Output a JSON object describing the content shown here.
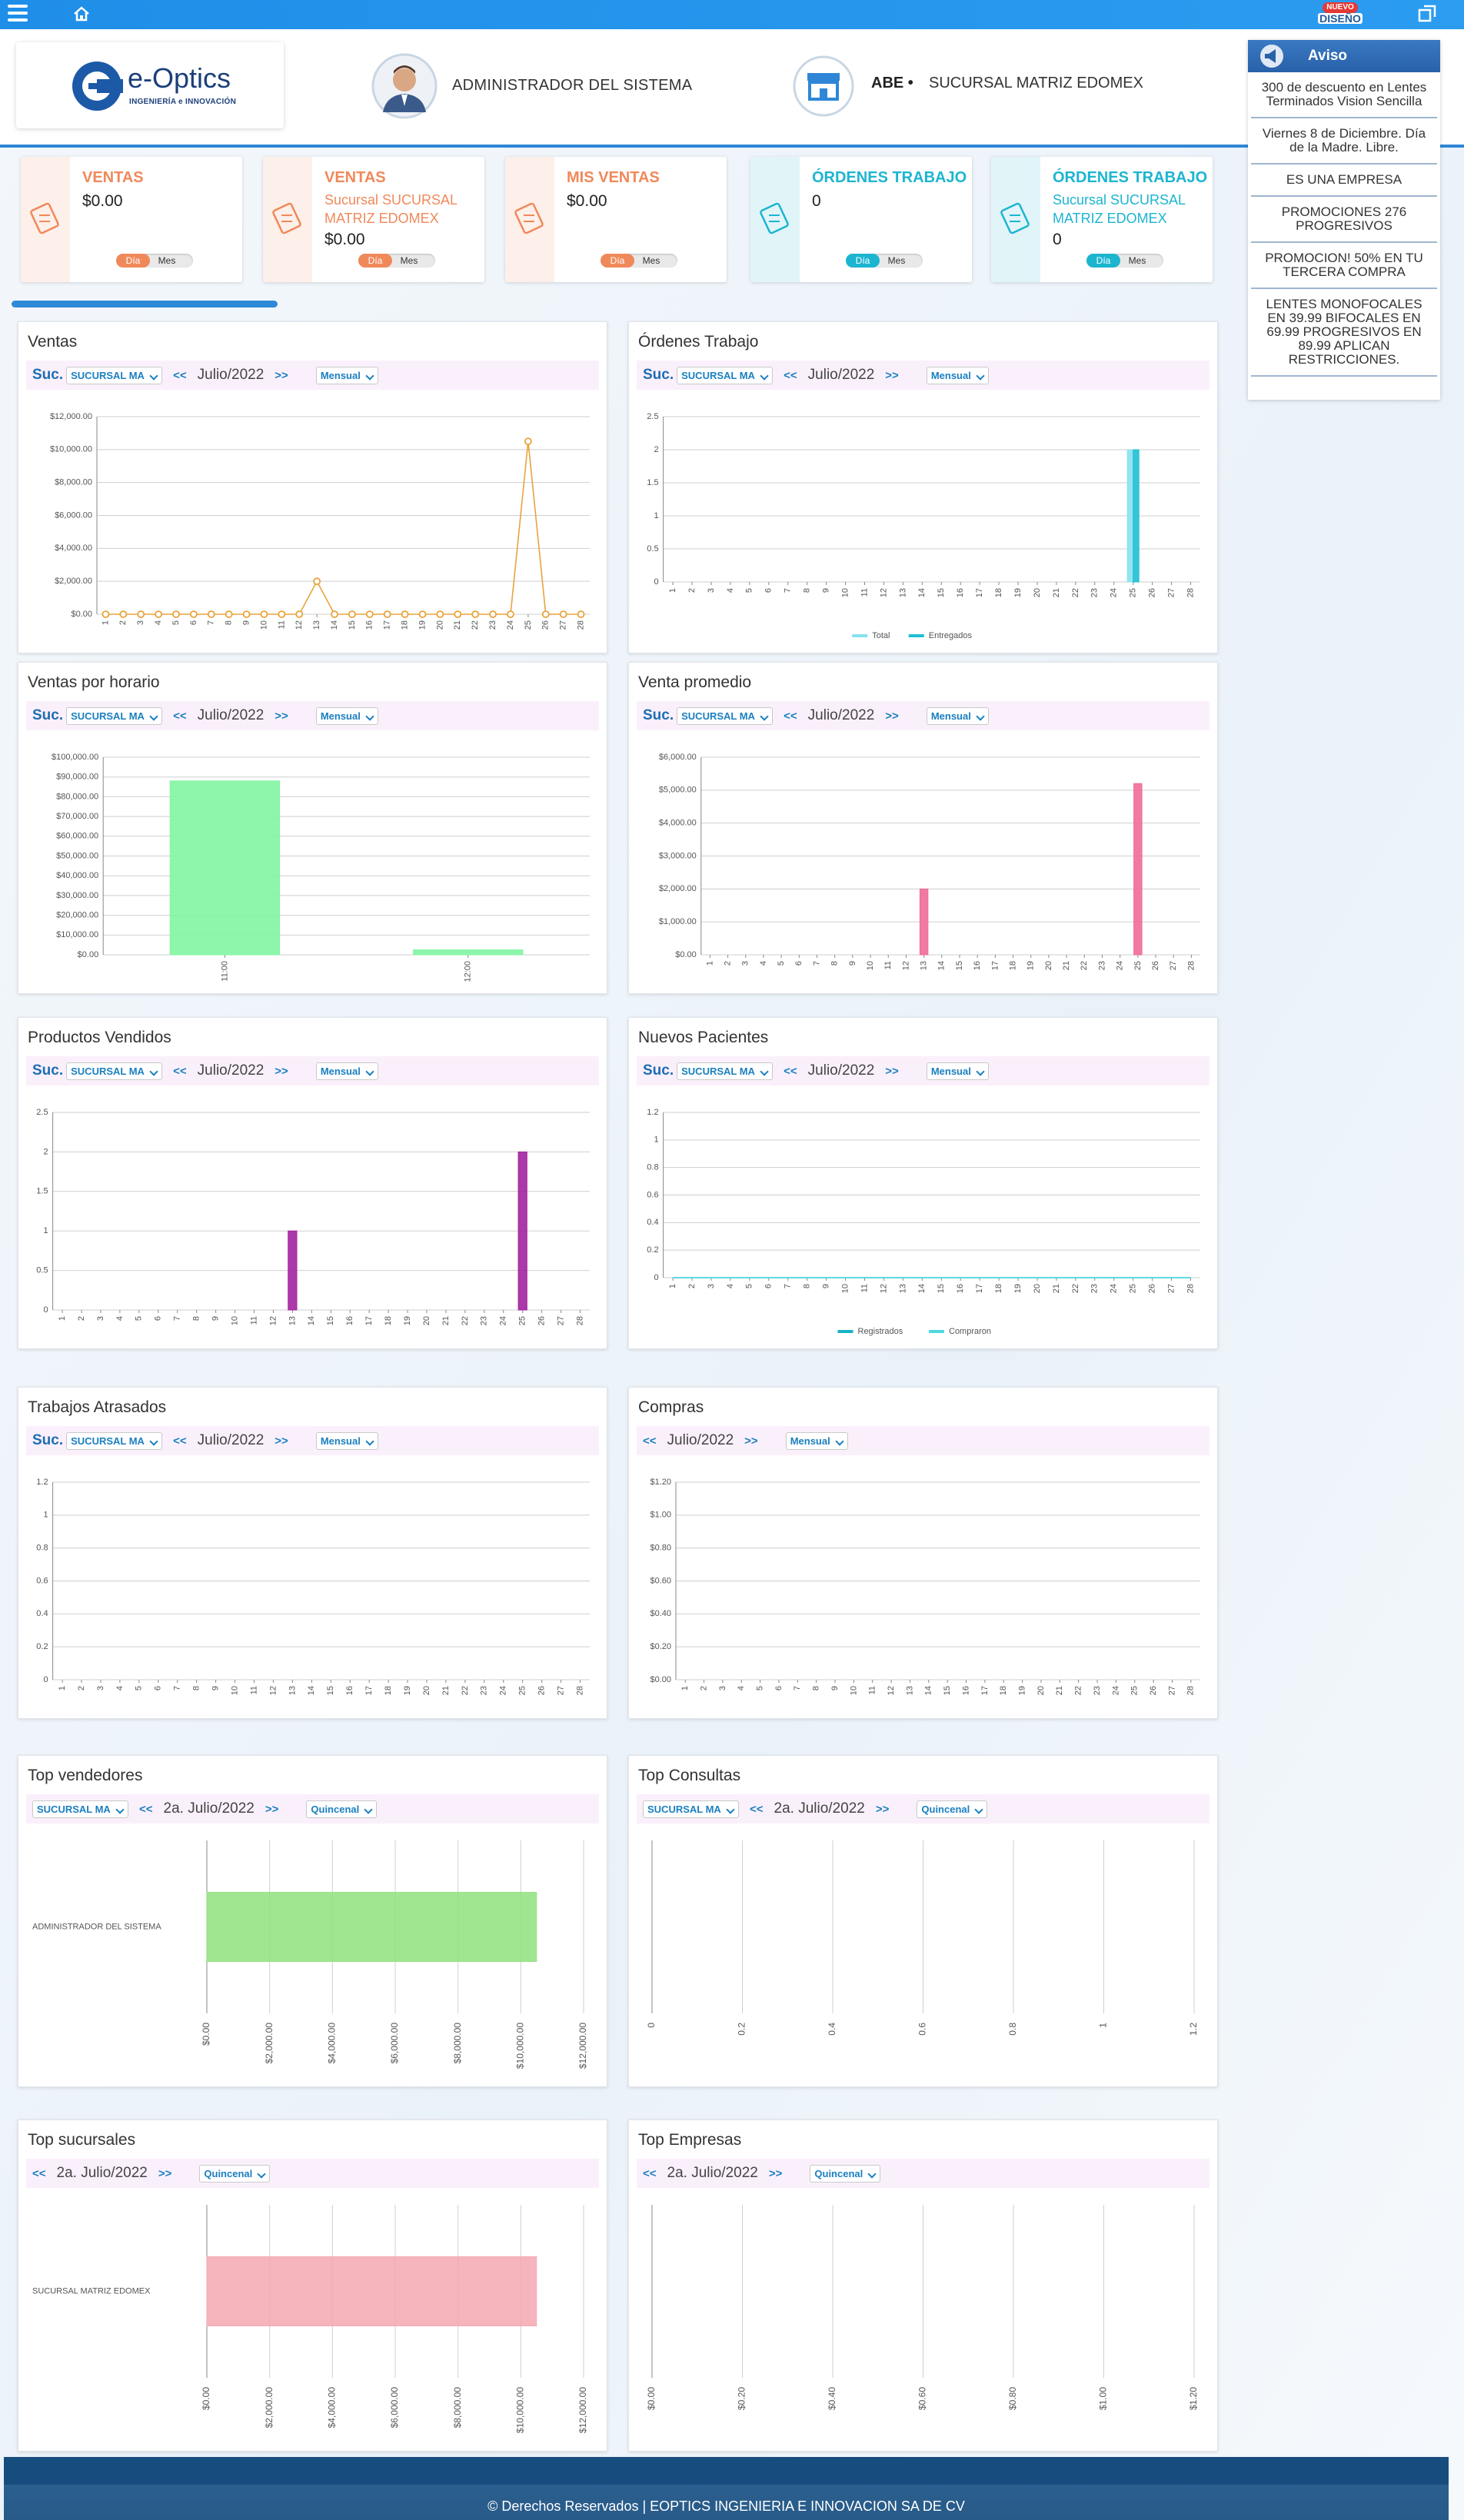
{
  "header": {
    "badge": [
      "NUEVO",
      "DISEÑO"
    ],
    "logo": {
      "name": "e-Optics",
      "tagline": "INGENIERÍA e INNOVACIÓN"
    },
    "user": "ADMINISTRADOR DEL SISTEMA",
    "company": "ABE •",
    "branch": "SUCURSAL MATRIZ EDOMEX"
  },
  "cards": [
    {
      "title": "VENTAS",
      "value": "$0.00",
      "toggle": [
        "Día",
        "Mes"
      ],
      "color": "#f0895a"
    },
    {
      "title": "VENTAS",
      "subtitle": "Sucursal SUCURSAL MATRIZ EDOMEX",
      "value": "$0.00",
      "toggle": [
        "Día",
        "Mes"
      ],
      "color": "#f0895a"
    },
    {
      "title": "MIS VENTAS",
      "value": "$0.00",
      "toggle": [
        "Día",
        "Mes"
      ],
      "color": "#f0895a"
    },
    {
      "title": "ÓRDENES TRABAJO",
      "value": "0",
      "toggle": [
        "Día",
        "Mes"
      ],
      "color": "#1cb5d0"
    },
    {
      "title": "ÓRDENES TRABAJO",
      "subtitle": "Sucursal SUCURSAL MATRIZ EDOMEX",
      "value": "0",
      "toggle": [
        "Día",
        "Mes"
      ],
      "color": "#1cb5d0"
    }
  ],
  "aviso": {
    "title": "Aviso",
    "items": [
      "300 de descuento en Lentes Terminados Vision Sencilla",
      "Viernes 8 de Diciembre. Día de la Madre. Libre.",
      "ES UNA EMPRESA",
      "PROMOCIONES 276 PROGRESIVOS",
      "PROMOCION! 50% EN TU TERCERA COMPRA",
      "LENTES MONOFOCALES EN 39.99 BIFOCALES EN 69.99 PROGRESIVOS EN 89.99 APLICAN RESTRICCIONES."
    ]
  },
  "chart_data": [
    {
      "type": "line",
      "title": "Ventas",
      "markers": true,
      "controls": {
        "suc": "Suc.",
        "branch": "SUCURSAL MA",
        "prev": "<<",
        "period": "Julio/2022",
        "next": ">>",
        "mode": "Mensual"
      },
      "categories": [
        "1",
        "2",
        "3",
        "4",
        "5",
        "6",
        "7",
        "8",
        "9",
        "10",
        "11",
        "12",
        "13",
        "14",
        "15",
        "16",
        "17",
        "18",
        "19",
        "20",
        "21",
        "22",
        "23",
        "24",
        "25",
        "26",
        "27",
        "28"
      ],
      "values": [
        0,
        0,
        0,
        0,
        0,
        0,
        0,
        0,
        0,
        0,
        0,
        0,
        2000,
        0,
        0,
        0,
        0,
        0,
        0,
        0,
        0,
        0,
        0,
        0,
        10500,
        0,
        0,
        0
      ],
      "color": "#e8a33d",
      "ylim": [
        0,
        12000
      ],
      "yticks": [
        {
          "value": 0,
          "label": "$0.00"
        },
        {
          "value": 2000,
          "label": "$2,000.00"
        },
        {
          "value": 4000,
          "label": "$4,000.00"
        },
        {
          "value": 6000,
          "label": "$6,000.00"
        },
        {
          "value": 8000,
          "label": "$8,000.00"
        },
        {
          "value": 10000,
          "label": "$10,000.00"
        },
        {
          "value": 12000,
          "label": "$12,000.00"
        }
      ]
    },
    {
      "type": "bar",
      "title": "Órdenes Trabajo",
      "legend": "bottom",
      "controls": {
        "suc": "Suc.",
        "branch": "SUCURSAL MA",
        "prev": "<<",
        "period": "Julio/2022",
        "next": ">>",
        "mode": "Mensual"
      },
      "categories": [
        "1",
        "2",
        "3",
        "4",
        "5",
        "6",
        "7",
        "8",
        "9",
        "10",
        "11",
        "12",
        "13",
        "14",
        "15",
        "16",
        "17",
        "18",
        "19",
        "20",
        "21",
        "22",
        "23",
        "24",
        "25",
        "26",
        "27",
        "28"
      ],
      "series": [
        {
          "name": "Total",
          "color": "#86e2ee",
          "values": [
            0,
            0,
            0,
            0,
            0,
            0,
            0,
            0,
            0,
            0,
            0,
            0,
            0,
            0,
            0,
            0,
            0,
            0,
            0,
            0,
            0,
            0,
            0,
            0,
            2,
            0,
            0,
            0
          ]
        },
        {
          "name": "Entregados",
          "color": "#1fbfd4",
          "values": [
            0,
            0,
            0,
            0,
            0,
            0,
            0,
            0,
            0,
            0,
            0,
            0,
            0,
            0,
            0,
            0,
            0,
            0,
            0,
            0,
            0,
            0,
            0,
            0,
            2,
            0,
            0,
            0
          ]
        }
      ],
      "ylim": [
        0,
        2.5
      ],
      "yticks": [
        0,
        0.5,
        1,
        1.5,
        2,
        2.5
      ]
    },
    {
      "type": "bar",
      "title": "Ventas por horario",
      "controls": {
        "suc": "Suc.",
        "branch": "SUCURSAL MA",
        "prev": "<<",
        "period": "Julio/2022",
        "next": ">>",
        "mode": "Mensual"
      },
      "categories": [
        "11:00",
        "12:00"
      ],
      "values": [
        88000,
        2500
      ],
      "color": "#82f5a2",
      "ylim": [
        0,
        100000
      ],
      "yticks": [
        {
          "value": 0,
          "label": "$0.00"
        },
        {
          "value": 10000,
          "label": "$10,000.00"
        },
        {
          "value": 20000,
          "label": "$20,000.00"
        },
        {
          "value": 30000,
          "label": "$30,000.00"
        },
        {
          "value": 40000,
          "label": "$40,000.00"
        },
        {
          "value": 50000,
          "label": "$50,000.00"
        },
        {
          "value": 60000,
          "label": "$60,000.00"
        },
        {
          "value": 70000,
          "label": "$70,000.00"
        },
        {
          "value": 80000,
          "label": "$80,000.00"
        },
        {
          "value": 90000,
          "label": "$90,000.00"
        },
        {
          "value": 100000,
          "label": "$100,000.00"
        }
      ]
    },
    {
      "type": "bar",
      "title": "Venta promedio",
      "controls": {
        "suc": "Suc.",
        "branch": "SUCURSAL MA",
        "prev": "<<",
        "period": "Julio/2022",
        "next": ">>",
        "mode": "Mensual"
      },
      "categories": [
        "1",
        "2",
        "3",
        "4",
        "5",
        "6",
        "7",
        "8",
        "9",
        "10",
        "11",
        "12",
        "13",
        "14",
        "15",
        "16",
        "17",
        "18",
        "19",
        "20",
        "21",
        "22",
        "23",
        "24",
        "25",
        "26",
        "27",
        "28"
      ],
      "values": [
        0,
        0,
        0,
        0,
        0,
        0,
        0,
        0,
        0,
        0,
        0,
        0,
        2000,
        0,
        0,
        0,
        0,
        0,
        0,
        0,
        0,
        0,
        0,
        0,
        5200,
        0,
        0,
        0
      ],
      "color": "#f06b99",
      "ylim": [
        0,
        6000
      ],
      "yticks": [
        {
          "value": 0,
          "label": "$0.00"
        },
        {
          "value": 1000,
          "label": "$1,000.00"
        },
        {
          "value": 2000,
          "label": "$2,000.00"
        },
        {
          "value": 3000,
          "label": "$3,000.00"
        },
        {
          "value": 4000,
          "label": "$4,000.00"
        },
        {
          "value": 5000,
          "label": "$5,000.00"
        },
        {
          "value": 6000,
          "label": "$6,000.00"
        }
      ]
    },
    {
      "type": "bar",
      "title": "Productos Vendidos",
      "controls": {
        "suc": "Suc.",
        "branch": "SUCURSAL MA",
        "prev": "<<",
        "period": "Julio/2022",
        "next": ">>",
        "mode": "Mensual"
      },
      "categories": [
        "1",
        "2",
        "3",
        "4",
        "5",
        "6",
        "7",
        "8",
        "9",
        "10",
        "11",
        "12",
        "13",
        "14",
        "15",
        "16",
        "17",
        "18",
        "19",
        "20",
        "21",
        "22",
        "23",
        "24",
        "25",
        "26",
        "27",
        "28"
      ],
      "values": [
        0,
        0,
        0,
        0,
        0,
        0,
        0,
        0,
        0,
        0,
        0,
        0,
        1,
        0,
        0,
        0,
        0,
        0,
        0,
        0,
        0,
        0,
        0,
        0,
        2,
        0,
        0,
        0
      ],
      "color": "#a3239f",
      "ylim": [
        0,
        2.5
      ],
      "yticks": [
        0,
        0.5,
        1,
        1.5,
        2,
        2.5
      ]
    },
    {
      "type": "line",
      "title": "Nuevos Pacientes",
      "legend": "bottom",
      "controls": {
        "suc": "Suc.",
        "branch": "SUCURSAL MA",
        "prev": "<<",
        "period": "Julio/2022",
        "next": ">>",
        "mode": "Mensual"
      },
      "categories": [
        "1",
        "2",
        "3",
        "4",
        "5",
        "6",
        "7",
        "8",
        "9",
        "10",
        "11",
        "12",
        "13",
        "14",
        "15",
        "16",
        "17",
        "18",
        "19",
        "20",
        "21",
        "22",
        "23",
        "24",
        "25",
        "26",
        "27",
        "28"
      ],
      "series": [
        {
          "name": "Registrados",
          "color": "#17b3c6",
          "values": [
            0,
            0,
            0,
            0,
            0,
            0,
            0,
            0,
            0,
            0,
            0,
            0,
            0,
            0,
            0,
            0,
            0,
            0,
            0,
            0,
            0,
            0,
            0,
            0,
            0,
            0,
            0,
            0
          ]
        },
        {
          "name": "Compraron",
          "color": "#4fd8e2",
          "values": [
            0,
            0,
            0,
            0,
            0,
            0,
            0,
            0,
            0,
            0,
            0,
            0,
            0,
            0,
            0,
            0,
            0,
            0,
            0,
            0,
            0,
            0,
            0,
            0,
            0,
            0,
            0,
            0
          ]
        }
      ],
      "ylim": [
        0,
        1.2
      ],
      "yticks": [
        0,
        0.2,
        0.4,
        0.6,
        0.8,
        1,
        1.2
      ]
    },
    {
      "type": "bar",
      "title": "Trabajos Atrasados",
      "controls": {
        "suc": "Suc.",
        "branch": "SUCURSAL MA",
        "prev": "<<",
        "period": "Julio/2022",
        "next": ">>",
        "mode": "Mensual"
      },
      "categories": [
        "1",
        "2",
        "3",
        "4",
        "5",
        "6",
        "7",
        "8",
        "9",
        "10",
        "11",
        "12",
        "13",
        "14",
        "15",
        "16",
        "17",
        "18",
        "19",
        "20",
        "21",
        "22",
        "23",
        "24",
        "25",
        "26",
        "27",
        "28"
      ],
      "values": [
        0,
        0,
        0,
        0,
        0,
        0,
        0,
        0,
        0,
        0,
        0,
        0,
        0,
        0,
        0,
        0,
        0,
        0,
        0,
        0,
        0,
        0,
        0,
        0,
        0,
        0,
        0,
        0
      ],
      "ylim": [
        0,
        1.2
      ],
      "yticks": [
        0,
        0.2,
        0.4,
        0.6,
        0.8,
        1,
        1.2
      ]
    },
    {
      "type": "bar",
      "title": "Compras",
      "controls": {
        "prev": "<<",
        "period": "Julio/2022",
        "next": ">>",
        "mode": "Mensual"
      },
      "categories": [
        "1",
        "2",
        "3",
        "4",
        "5",
        "6",
        "7",
        "8",
        "9",
        "10",
        "11",
        "12",
        "13",
        "14",
        "15",
        "16",
        "17",
        "18",
        "19",
        "20",
        "21",
        "22",
        "23",
        "24",
        "25",
        "26",
        "27",
        "28"
      ],
      "values": [
        0,
        0,
        0,
        0,
        0,
        0,
        0,
        0,
        0,
        0,
        0,
        0,
        0,
        0,
        0,
        0,
        0,
        0,
        0,
        0,
        0,
        0,
        0,
        0,
        0,
        0,
        0,
        0
      ],
      "ylim": [
        0,
        1.2
      ],
      "yticks": [
        {
          "value": 0,
          "label": "$0.00"
        },
        {
          "value": 0.2,
          "label": "$0.20"
        },
        {
          "value": 0.4,
          "label": "$0.40"
        },
        {
          "value": 0.6,
          "label": "$0.60"
        },
        {
          "value": 0.8,
          "label": "$0.80"
        },
        {
          "value": 1,
          "label": "$1.00"
        },
        {
          "value": 1.2,
          "label": "$1.20"
        }
      ]
    },
    {
      "type": "hbar",
      "title": "Top vendedores",
      "controls": {
        "branch": "SUCURSAL MA",
        "prev": "<<",
        "period": "2a. Julio/2022",
        "next": ">>",
        "mode": "Quincenal"
      },
      "categories": [
        "ADMINISTRADOR DEL SISTEMA"
      ],
      "values": [
        10500
      ],
      "color": "#8fe27c",
      "xlim": [
        0,
        12000
      ],
      "xticks": [
        {
          "value": 0,
          "label": "$0.00"
        },
        {
          "value": 2000,
          "label": "$2,000.00"
        },
        {
          "value": 4000,
          "label": "$4,000.00"
        },
        {
          "value": 6000,
          "label": "$6,000.00"
        },
        {
          "value": 8000,
          "label": "$8,000.00"
        },
        {
          "value": 10000,
          "label": "$10,000.00"
        },
        {
          "value": 12000,
          "label": "$12,000.00"
        }
      ]
    },
    {
      "type": "hbar",
      "title": "Top Consultas",
      "controls": {
        "branch": "SUCURSAL MA",
        "prev": "<<",
        "period": "2a. Julio/2022",
        "next": ">>",
        "mode": "Quincenal"
      },
      "categories": [],
      "values": [],
      "xlim": [
        0,
        1.2
      ],
      "xticks": [
        0,
        0.2,
        0.4,
        0.6,
        0.8,
        1,
        1.2
      ]
    },
    {
      "type": "hbar",
      "title": "Top sucursales",
      "controls": {
        "prev": "<<",
        "period": "2a. Julio/2022",
        "next": ">>",
        "mode": "Quincenal"
      },
      "categories": [
        "SUCURSAL MATRIZ EDOMEX"
      ],
      "values": [
        10500
      ],
      "color": "#f4a7b1",
      "xlim": [
        0,
        12000
      ],
      "xticks": [
        {
          "value": 0,
          "label": "$0.00"
        },
        {
          "value": 2000,
          "label": "$2,000.00"
        },
        {
          "value": 4000,
          "label": "$4,000.00"
        },
        {
          "value": 6000,
          "label": "$6,000.00"
        },
        {
          "value": 8000,
          "label": "$8,000.00"
        },
        {
          "value": 10000,
          "label": "$10,000.00"
        },
        {
          "value": 12000,
          "label": "$12,000.00"
        }
      ]
    },
    {
      "type": "hbar",
      "title": "Top Empresas",
      "controls": {
        "prev": "<<",
        "period": "2a. Julio/2022",
        "next": ">>",
        "mode": "Quincenal"
      },
      "categories": [],
      "values": [],
      "xlim": [
        0,
        1.2
      ],
      "xticks": [
        {
          "value": 0,
          "label": "$0.00"
        },
        {
          "value": 0.2,
          "label": "$0.20"
        },
        {
          "value": 0.4,
          "label": "$0.40"
        },
        {
          "value": 0.6,
          "label": "$0.60"
        },
        {
          "value": 0.8,
          "label": "$0.80"
        },
        {
          "value": 1,
          "label": "$1.00"
        },
        {
          "value": 1.2,
          "label": "$1.20"
        }
      ]
    }
  ],
  "footer": "© Derechos Reservados | EOPTICS INGENIERIA E INNOVACION SA DE CV"
}
